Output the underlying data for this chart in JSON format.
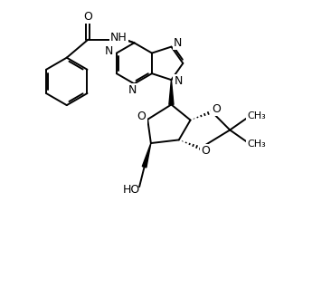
{
  "background_color": "#ffffff",
  "line_color": "#000000",
  "line_width": 1.4,
  "figsize": [
    3.66,
    3.4
  ],
  "dpi": 100,
  "xlim": [
    0,
    10
  ],
  "ylim": [
    0,
    9.3
  ]
}
